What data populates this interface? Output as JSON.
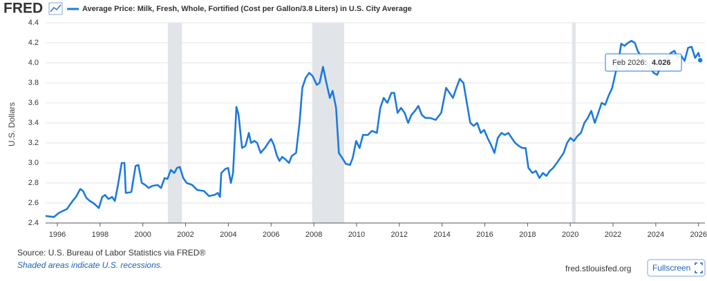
{
  "logo": "FRED",
  "chart_data": {
    "type": "line",
    "y_label": "U.S. Dollars",
    "x": [
      1995.45,
      1995.84,
      1996.06,
      1996.45,
      1996.71,
      1996.87,
      1997.07,
      1997.2,
      1997.36,
      1997.52,
      1997.68,
      1997.84,
      1997.94,
      1998.1,
      1998.23,
      1998.39,
      1998.56,
      1998.69,
      1998.82,
      1999.01,
      1999.14,
      1999.2,
      1999.46,
      1999.66,
      1999.79,
      1999.95,
      2000.11,
      2000.27,
      2000.43,
      2000.69,
      2000.85,
      2001.02,
      2001.15,
      2001.31,
      2001.47,
      2001.6,
      2001.73,
      2001.89,
      2002.05,
      2002.31,
      2002.54,
      2002.86,
      2003.09,
      2003.35,
      2003.51,
      2003.61,
      2003.67,
      2003.86,
      2003.99,
      2004.12,
      2004.22,
      2004.38,
      2004.48,
      2004.64,
      2004.8,
      2004.96,
      2005.06,
      2005.22,
      2005.35,
      2005.51,
      2005.71,
      2005.87,
      2006.0,
      2006.13,
      2006.26,
      2006.39,
      2006.52,
      2006.65,
      2006.84,
      2006.97,
      2007.17,
      2007.33,
      2007.46,
      2007.62,
      2007.78,
      2007.94,
      2008.14,
      2008.27,
      2008.43,
      2008.59,
      2008.75,
      2008.88,
      2009.04,
      2009.17,
      2009.33,
      2009.5,
      2009.69,
      2009.82,
      2009.98,
      2010.14,
      2010.3,
      2010.53,
      2010.72,
      2010.95,
      2011.11,
      2011.27,
      2011.44,
      2011.63,
      2011.76,
      2011.92,
      2012.08,
      2012.25,
      2012.41,
      2012.57,
      2012.73,
      2012.89,
      2013.05,
      2013.22,
      2013.44,
      2013.7,
      2013.96,
      2014.19,
      2014.35,
      2014.51,
      2014.67,
      2014.83,
      2015.0,
      2015.16,
      2015.32,
      2015.48,
      2015.64,
      2015.81,
      2015.97,
      2016.13,
      2016.29,
      2016.45,
      2016.61,
      2016.78,
      2016.94,
      2017.1,
      2017.26,
      2017.42,
      2017.59,
      2017.75,
      2017.91,
      2018.04,
      2018.23,
      2018.39,
      2018.56,
      2018.72,
      2018.88,
      2019.04,
      2019.2,
      2019.37,
      2019.53,
      2019.69,
      2019.85,
      2020.01,
      2020.17,
      2020.34,
      2020.5,
      2020.66,
      2020.82,
      2020.98,
      2021.15,
      2021.31,
      2021.47,
      2021.63,
      2021.79,
      2021.96,
      2022.12,
      2022.28,
      2022.38,
      2022.54,
      2022.7,
      2022.86,
      2023.02,
      2023.15,
      2023.35,
      2023.57,
      2023.73,
      2023.9,
      2024.06,
      2024.22,
      2024.38,
      2024.54,
      2024.71,
      2024.87,
      2025.03,
      2025.19,
      2025.35,
      2025.51,
      2025.68,
      2025.84,
      2026.0,
      2026.08
    ],
    "series": [
      {
        "name": "Average Price: Milk, Fresh, Whole, Fortified (Cost per Gallon/3.8 Liters) in U.S. City Average",
        "color": "#1b79dd",
        "values": [
          2.47,
          2.46,
          2.5,
          2.54,
          2.62,
          2.66,
          2.74,
          2.72,
          2.65,
          2.62,
          2.6,
          2.57,
          2.55,
          2.66,
          2.68,
          2.64,
          2.66,
          2.62,
          2.76,
          3.0,
          3.0,
          2.7,
          2.71,
          2.97,
          2.98,
          2.8,
          2.78,
          2.75,
          2.77,
          2.78,
          2.75,
          2.85,
          2.84,
          2.93,
          2.9,
          2.95,
          2.96,
          2.85,
          2.8,
          2.78,
          2.73,
          2.72,
          2.67,
          2.68,
          2.7,
          2.66,
          2.9,
          2.94,
          2.95,
          2.8,
          2.9,
          3.56,
          3.48,
          3.15,
          3.17,
          3.3,
          3.2,
          3.22,
          3.2,
          3.1,
          3.15,
          3.2,
          3.24,
          3.18,
          3.08,
          3.02,
          3.06,
          3.04,
          3.0,
          3.07,
          3.1,
          3.4,
          3.75,
          3.85,
          3.9,
          3.87,
          3.78,
          3.8,
          3.96,
          3.8,
          3.65,
          3.72,
          3.55,
          3.1,
          3.05,
          2.99,
          2.98,
          3.05,
          3.22,
          3.15,
          3.28,
          3.28,
          3.32,
          3.3,
          3.55,
          3.65,
          3.6,
          3.7,
          3.7,
          3.5,
          3.55,
          3.5,
          3.4,
          3.48,
          3.52,
          3.57,
          3.48,
          3.45,
          3.45,
          3.43,
          3.5,
          3.75,
          3.7,
          3.65,
          3.75,
          3.84,
          3.8,
          3.6,
          3.4,
          3.37,
          3.4,
          3.3,
          3.33,
          3.25,
          3.18,
          3.1,
          3.25,
          3.3,
          3.28,
          3.3,
          3.25,
          3.2,
          3.17,
          3.15,
          3.15,
          2.95,
          2.9,
          2.92,
          2.85,
          2.9,
          2.87,
          2.92,
          2.95,
          3.0,
          3.05,
          3.1,
          3.2,
          3.25,
          3.22,
          3.27,
          3.3,
          3.4,
          3.45,
          3.52,
          3.4,
          3.5,
          3.6,
          3.58,
          3.67,
          3.75,
          3.9,
          4.05,
          4.19,
          4.17,
          4.2,
          4.22,
          4.2,
          4.12,
          4.05,
          4.0,
          3.95,
          3.9,
          3.88,
          3.95,
          4.0,
          4.05,
          4.1,
          4.12,
          4.05,
          4.07,
          4.02,
          4.15,
          4.16,
          4.05,
          4.1,
          4.026
        ]
      }
    ],
    "xlim": [
      1995.45,
      2026.3
    ],
    "xticks": [
      1996,
      1998,
      2000,
      2002,
      2004,
      2006,
      2008,
      2010,
      2012,
      2014,
      2016,
      2018,
      2020,
      2022,
      2024,
      2026
    ],
    "ylim": [
      2.4,
      4.4
    ],
    "yticks": [
      2.4,
      2.6,
      2.8,
      {
        "value": 3,
        "label": "3.0"
      },
      3.2,
      3.4,
      3.6,
      3.8,
      {
        "value": 4,
        "label": "4.0"
      },
      4.2,
      4.4
    ],
    "grid": true,
    "recessions": [
      [
        2001.17,
        2001.83
      ],
      [
        2007.92,
        2009.42
      ],
      [
        2020.08,
        2020.25
      ]
    ],
    "recession_color": "#e1e5ea",
    "tooltip_label": "Feb 2026:"
  },
  "source": "Source: U.S. Bureau of Labor Statistics via FRED®",
  "note": "Shaded areas indicate U.S. recessions.",
  "site": "fred.stlouisfed.org",
  "fullscreen": "Fullscreen"
}
